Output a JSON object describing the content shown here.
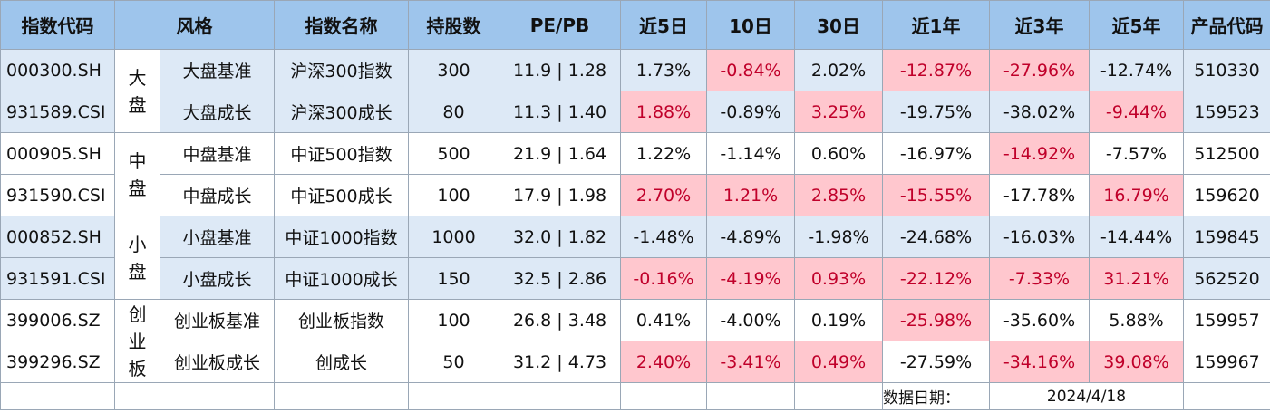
{
  "headers": [
    "指数代码",
    "风格",
    "指数名称",
    "持股数",
    "PE/PB",
    "近5日",
    "10日",
    "30日",
    "近1年",
    "近3年",
    "近5年",
    "产品代码"
  ],
  "groups": [
    {
      "style": [
        "大",
        "盘"
      ]
    },
    {
      "style": [
        "中",
        "盘"
      ]
    },
    {
      "style": [
        "小",
        "盘"
      ]
    },
    {
      "style": [
        "创",
        "业",
        "板"
      ]
    }
  ],
  "rows": [
    {
      "code": "000300.SH",
      "type": "大盘基准",
      "name": "沪深300指数",
      "holdings": "300",
      "pepb": "11.9 | 1.28",
      "d5": "1.73%",
      "d10": "-0.84%",
      "d30": "2.02%",
      "y1": "-12.87%",
      "y3": "-27.96%",
      "y5": "-12.74%",
      "product": "510330"
    },
    {
      "code": "931589.CSI",
      "type": "大盘成长",
      "name": "沪深300成长",
      "holdings": "80",
      "pepb": "11.3 | 1.40",
      "d5": "1.88%",
      "d10": "-0.89%",
      "d30": "3.25%",
      "y1": "-19.75%",
      "y3": "-38.02%",
      "y5": "-9.44%",
      "product": "159523"
    },
    {
      "code": "000905.SH",
      "type": "中盘基准",
      "name": "中证500指数",
      "holdings": "500",
      "pepb": "21.9 | 1.64",
      "d5": "1.22%",
      "d10": "-1.14%",
      "d30": "0.60%",
      "y1": "-16.97%",
      "y3": "-14.92%",
      "y5": "-7.57%",
      "product": "512500"
    },
    {
      "code": "931590.CSI",
      "type": "中盘成长",
      "name": "中证500成长",
      "holdings": "100",
      "pepb": "17.9 | 1.98",
      "d5": "2.70%",
      "d10": "1.21%",
      "d30": "2.85%",
      "y1": "-15.55%",
      "y3": "-17.78%",
      "y5": "16.79%",
      "product": "159620"
    },
    {
      "code": "000852.SH",
      "type": "小盘基准",
      "name": "中证1000指数",
      "holdings": "1000",
      "pepb": "32.0 | 1.82",
      "d5": "-1.48%",
      "d10": "-4.89%",
      "d30": "-1.98%",
      "y1": "-24.68%",
      "y3": "-16.03%",
      "y5": "-14.44%",
      "product": "159845"
    },
    {
      "code": "931591.CSI",
      "type": "小盘成长",
      "name": "中证1000成长",
      "holdings": "150",
      "pepb": "32.5 | 2.86",
      "d5": "-0.16%",
      "d10": "-4.19%",
      "d30": "0.93%",
      "y1": "-22.12%",
      "y3": "-7.33%",
      "y5": "31.21%",
      "product": "562520"
    },
    {
      "code": "399006.SZ",
      "type": "创业板基准",
      "name": "创业板指数",
      "holdings": "100",
      "pepb": "26.8 | 3.48",
      "d5": "0.41%",
      "d10": "-4.00%",
      "d30": "0.19%",
      "y1": "-25.98%",
      "y3": "-35.60%",
      "y5": "5.88%",
      "product": "159957"
    },
    {
      "code": "399296.SZ",
      "type": "创业板成长",
      "name": "创成长",
      "holdings": "50",
      "pepb": "31.2 | 4.73",
      "d5": "2.40%",
      "d10": "-3.41%",
      "d30": "0.49%",
      "y1": "-27.59%",
      "y3": "-34.16%",
      "y5": "39.08%",
      "product": "159967"
    }
  ],
  "footer": {
    "label": "数据日期：",
    "date": "2024/4/18"
  },
  "colors": {
    "header_bg": "#9ec5ec",
    "row_blue": "#dde9f6",
    "highlight_bg": "#ffc7ce",
    "highlight_text": "#c0002a"
  }
}
